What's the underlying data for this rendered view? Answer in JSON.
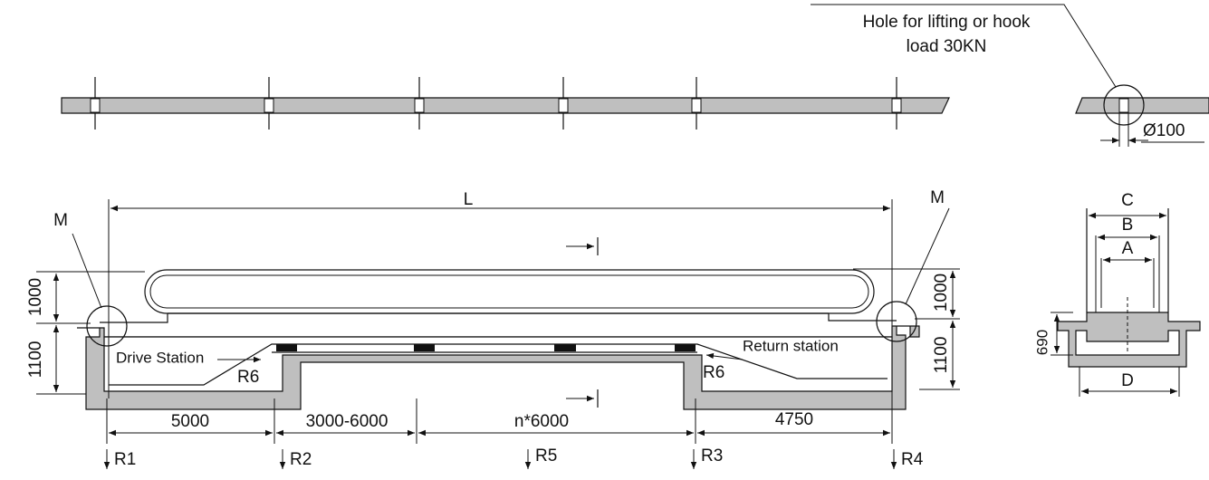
{
  "top_view": {
    "annotation": [
      "Hole for lifting or hook",
      "load 30KN"
    ],
    "hole_diameter": "Ø100"
  },
  "side_view": {
    "length": "L",
    "markers": [
      "M",
      "M"
    ],
    "heights_left": [
      "1000",
      "1100"
    ],
    "heights_right": [
      "1000",
      "1100"
    ],
    "stations": [
      "Drive Station",
      "Return station"
    ],
    "radii": [
      "R6",
      "R6"
    ],
    "spans": [
      "5000",
      "3000-6000",
      "n*6000",
      "4750"
    ],
    "supports": [
      "R1",
      "R2",
      "R5",
      "R3",
      "R4"
    ]
  },
  "section": {
    "widths": [
      "C",
      "B",
      "A",
      "D"
    ],
    "depth": "690"
  }
}
